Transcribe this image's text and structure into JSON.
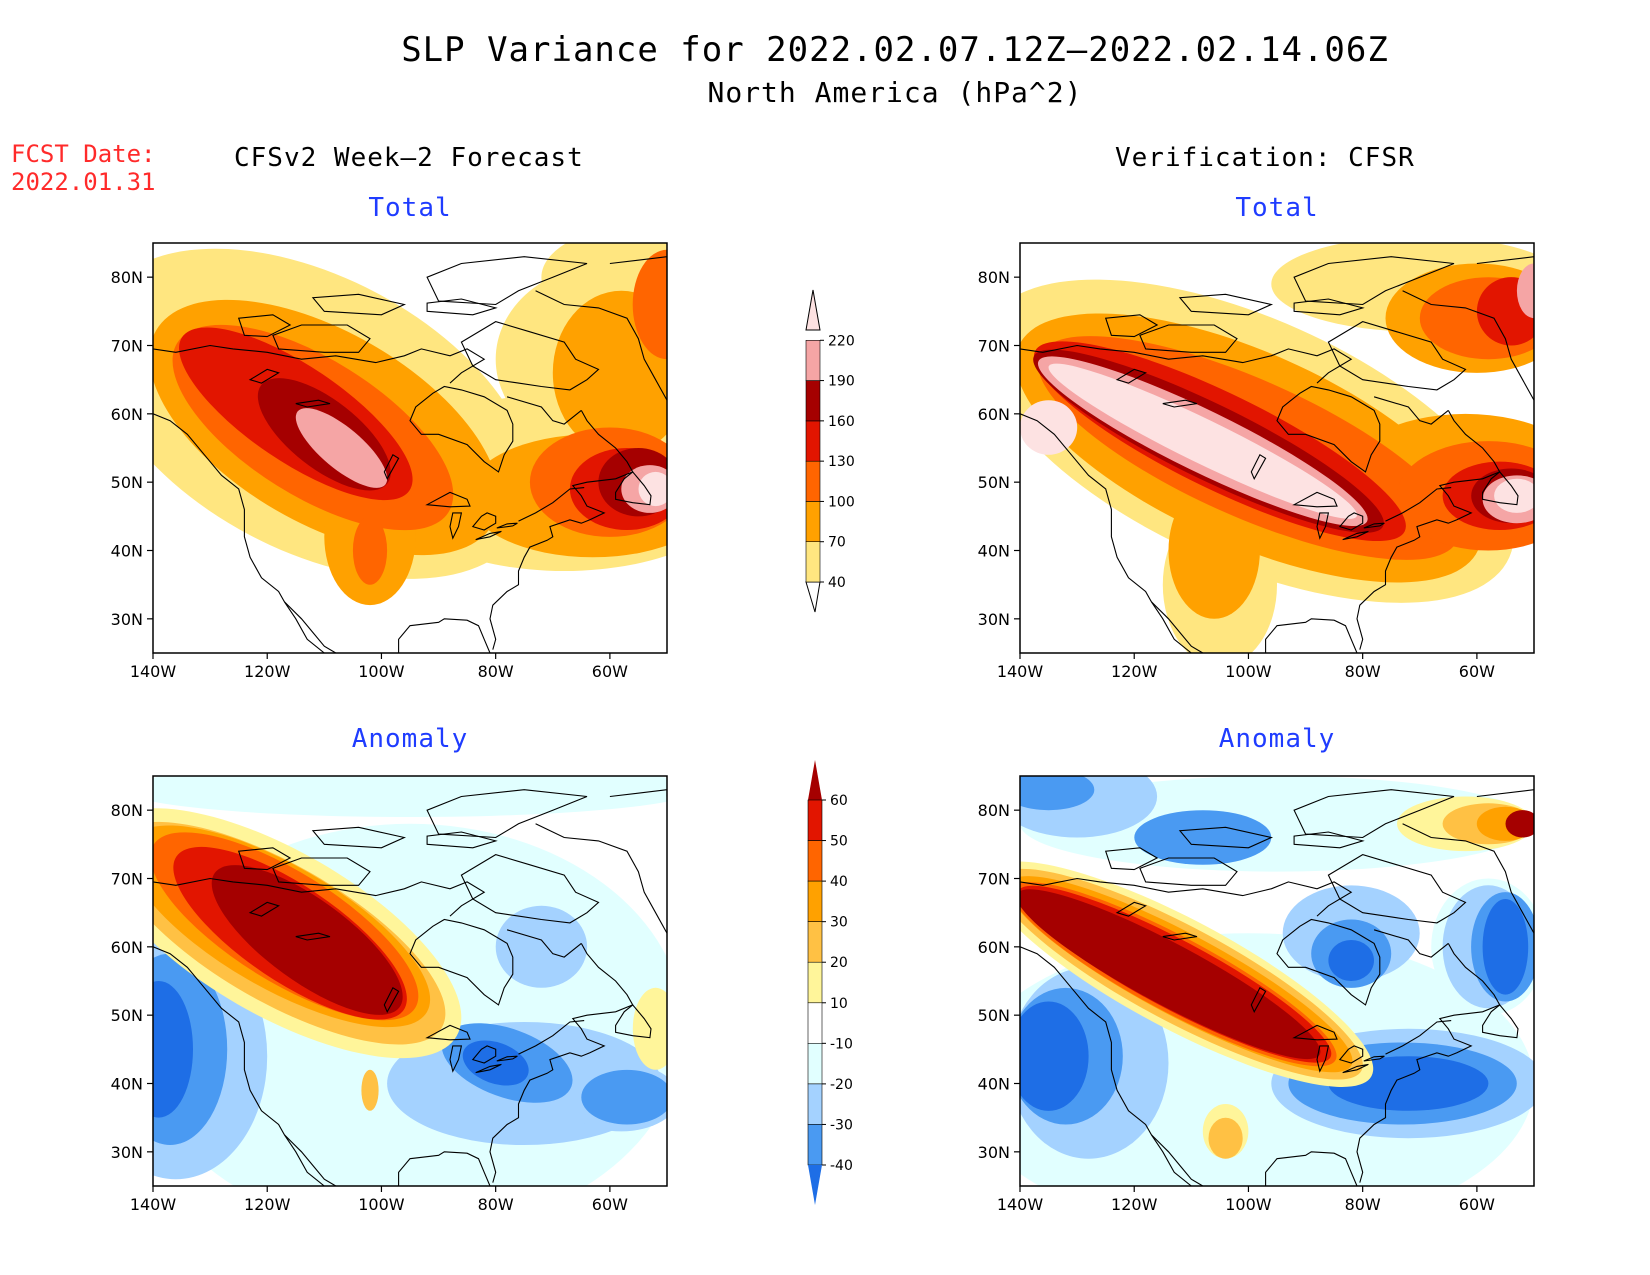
{
  "header": {
    "title": "SLP Variance for 2022.02.07.12Z—2022.02.14.06Z",
    "subtitle": "North America (hPa^2)",
    "fcst_label": "FCST Date:",
    "fcst_date": "2022.01.31"
  },
  "columns": {
    "left": "CFSv2 Week—2 Forecast",
    "right": "Verification: CFSR"
  },
  "panels": {
    "total_label": "Total",
    "anomaly_label": "Anomaly"
  },
  "axes": {
    "lat_ticks": [
      "80N",
      "70N",
      "60N",
      "50N",
      "40N",
      "30N"
    ],
    "lon_ticks": [
      "140W",
      "120W",
      "100W",
      "80W",
      "60W"
    ]
  },
  "colorbars": {
    "total": {
      "levels": [
        "40",
        "70",
        "100",
        "130",
        "160",
        "190",
        "220"
      ],
      "colors": [
        "#ffe680",
        "#ffa100",
        "#ff6500",
        "#e21500",
        "#a50000",
        "#f5a5a5",
        "#fde2e2"
      ]
    },
    "anomaly": {
      "levels": [
        "60",
        "50",
        "40",
        "30",
        "20",
        "10",
        "-10",
        "-20",
        "-30",
        "-40"
      ],
      "colors": [
        "#a50000",
        "#e21500",
        "#ff6500",
        "#ffa100",
        "#ffc144",
        "#fff59a",
        "#ffffff",
        "#e1ffff",
        "#a4d2ff",
        "#4a9af2",
        "#1e6ee6"
      ]
    }
  },
  "colors": {
    "title_blue": "#1f3cff",
    "fcst_red": "#ff2a2a",
    "total_ramp": [
      "#ffe680",
      "#ffa100",
      "#ff6500",
      "#e21500",
      "#a50000",
      "#f5a5a5",
      "#fde2e2"
    ],
    "anom_pos": [
      "#fff59a",
      "#ffc144",
      "#ffa100",
      "#ff6500",
      "#e21500",
      "#a50000"
    ],
    "anom_neg": [
      "#e1ffff",
      "#a4d2ff",
      "#4a9af2",
      "#1e6ee6"
    ]
  }
}
